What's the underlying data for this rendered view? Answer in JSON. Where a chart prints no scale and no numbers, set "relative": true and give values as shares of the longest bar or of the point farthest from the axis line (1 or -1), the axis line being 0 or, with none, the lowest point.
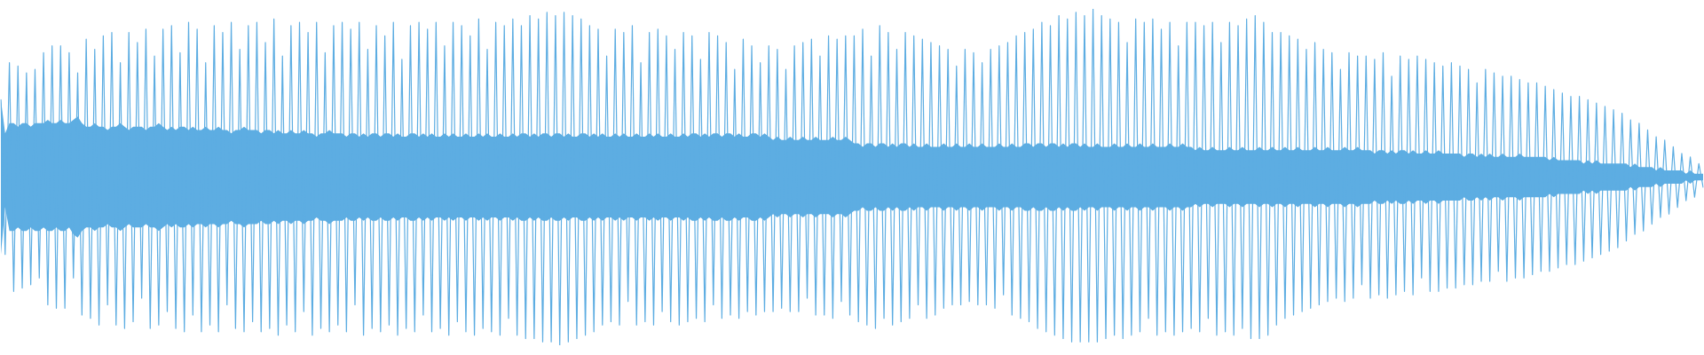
{
  "chart_data": {
    "type": "line",
    "relative": true,
    "categories": [
      null,
      null,
      null,
      null,
      null,
      null,
      null,
      null,
      null,
      null,
      null,
      null,
      null,
      null,
      null,
      null,
      null,
      null,
      null,
      null,
      null,
      null,
      null,
      null,
      null,
      null,
      null,
      null,
      null,
      null,
      null,
      null,
      null,
      null,
      null,
      null,
      null,
      null,
      null,
      null,
      null,
      null,
      null,
      null,
      null,
      null,
      null,
      null,
      null,
      null,
      null,
      null,
      null,
      null,
      null,
      null,
      null,
      null,
      null,
      null,
      null,
      null,
      null,
      null,
      null,
      null,
      null,
      null,
      null,
      null,
      null,
      null,
      null,
      null,
      null,
      null,
      null,
      null,
      null,
      null,
      null,
      null,
      null,
      null,
      null,
      null,
      null,
      null,
      null,
      null,
      null,
      null,
      null,
      null,
      null,
      null,
      null,
      null,
      null,
      null,
      null,
      null,
      null,
      null,
      null,
      null,
      null,
      null,
      null,
      null,
      null,
      null,
      null,
      null,
      null,
      null,
      null,
      null,
      null,
      null,
      null,
      null,
      null,
      null,
      null,
      null,
      null,
      null,
      null,
      null,
      null,
      null,
      null,
      null,
      null,
      null,
      null,
      null,
      null,
      null,
      null,
      null,
      null,
      null,
      null,
      null,
      null,
      null,
      null,
      null,
      null,
      null,
      null,
      null,
      null,
      null,
      null,
      null,
      null,
      null,
      null,
      null,
      null,
      null,
      null,
      null,
      null,
      null,
      null,
      null,
      null,
      null,
      null,
      null,
      null,
      null,
      null,
      null,
      null,
      null,
      null,
      null,
      null,
      null,
      null,
      null,
      null,
      null,
      null,
      null,
      null,
      null,
      null,
      null,
      null,
      null,
      null,
      null,
      null,
      null,
      null,
      null,
      null,
      null,
      null,
      null,
      null,
      null,
      null,
      null,
      null,
      null,
      null,
      null,
      null,
      null,
      null,
      null,
      null,
      null,
      null,
      null,
      null,
      null,
      null,
      null,
      null,
      null,
      null,
      null,
      null,
      null,
      null,
      null,
      null,
      null,
      null,
      null,
      null,
      null,
      null,
      null,
      null,
      null,
      null,
      null,
      null,
      null,
      null,
      null,
      null,
      null,
      null,
      null,
      null,
      null,
      null,
      null,
      null,
      null,
      null,
      null,
      null,
      null,
      null,
      null,
      null,
      null,
      null,
      null,
      null,
      null,
      null,
      null,
      null,
      null,
      null,
      null,
      null,
      null,
      null,
      null,
      null,
      null,
      null,
      null,
      null,
      null,
      null,
      null,
      null,
      null,
      null,
      null,
      null,
      null,
      null,
      null,
      null,
      null,
      null,
      null,
      null,
      null,
      null,
      null,
      null,
      null,
      null,
      null,
      null,
      null,
      null,
      null,
      null,
      null,
      null,
      null,
      null,
      null,
      null,
      null,
      null,
      null,
      null,
      null,
      null,
      null,
      null,
      null,
      null,
      null,
      null,
      null,
      null,
      null,
      null,
      null,
      null,
      null,
      null,
      null,
      null,
      null,
      null,
      null,
      null,
      null,
      null,
      null,
      null,
      null,
      null,
      null,
      null,
      null,
      null,
      null,
      null,
      null,
      null,
      null,
      null,
      null,
      null,
      null,
      null,
      null,
      null,
      null,
      null,
      null,
      null,
      null,
      null,
      null,
      null,
      null,
      null,
      null,
      null,
      null,
      null,
      null,
      null,
      null,
      null,
      null,
      null,
      null,
      null,
      null,
      null,
      null,
      null,
      null,
      null,
      null,
      null,
      null
    ],
    "series": [
      {
        "color": "#5dade2",
        "values": [
          0.73,
          0.27,
          0.84,
          0.16,
          0.83,
          0.17,
          0.81,
          0.18,
          0.82,
          0.2,
          0.87,
          0.12,
          0.89,
          0.11,
          0.89,
          0.11,
          0.87,
          0.2,
          0.81,
          0.09,
          0.91,
          0.08,
          0.88,
          0.06,
          0.92,
          0.12,
          0.93,
          0.06,
          0.84,
          0.05,
          0.93,
          0.07,
          0.9,
          0.14,
          0.94,
          0.05,
          0.86,
          0.06,
          0.94,
          0.1,
          0.95,
          0.05,
          0.87,
          0.04,
          0.96,
          0.09,
          0.94,
          0.04,
          0.84,
          0.06,
          0.95,
          0.04,
          0.93,
          0.12,
          0.96,
          0.05,
          0.88,
          0.04,
          0.95,
          0.07,
          0.96,
          0.04,
          0.9,
          0.05,
          0.97,
          0.03,
          0.86,
          0.06,
          0.95,
          0.04,
          0.96,
          0.1,
          0.93,
          0.03,
          0.96,
          0.05,
          0.87,
          0.04,
          0.95,
          0.06,
          0.96,
          0.04,
          0.94,
          0.12,
          0.96,
          0.03,
          0.88,
          0.05,
          0.95,
          0.04,
          0.92,
          0.06,
          0.96,
          0.03,
          0.85,
          0.05,
          0.95,
          0.04,
          0.96,
          0.09,
          0.94,
          0.04,
          0.96,
          0.05,
          0.89,
          0.03,
          0.96,
          0.07,
          0.95,
          0.04,
          0.92,
          0.03,
          0.97,
          0.05,
          0.88,
          0.04,
          0.96,
          0.03,
          0.95,
          0.08,
          0.97,
          0.03,
          0.95,
          0.02,
          0.98,
          0.02,
          0.97,
          0.01,
          0.99,
          0.01,
          0.98,
          0,
          0.99,
          0.01,
          0.98,
          0.02,
          0.97,
          0.03,
          0.95,
          0.04,
          0.94,
          0.06,
          0.86,
          0.07,
          0.94,
          0.06,
          0.93,
          0.13,
          0.95,
          0.06,
          0.84,
          0.07,
          0.93,
          0.06,
          0.94,
          0.1,
          0.92,
          0.07,
          0.88,
          0.06,
          0.93,
          0.07,
          0.92,
          0.08,
          0.85,
          0.07,
          0.93,
          0.12,
          0.92,
          0.08,
          0.9,
          0.09,
          0.82,
          0.08,
          0.91,
          0.1,
          0.89,
          0.09,
          0.84,
          0.1,
          0.89,
          0.1,
          0.88,
          0.11,
          0.82,
          0.1,
          0.89,
          0.1,
          0.9,
          0.14,
          0.91,
          0.09,
          0.86,
          0.09,
          0.92,
          0.08,
          0.91,
          0.13,
          0.92,
          0.09,
          0.92,
          0.07,
          0.94,
          0.06,
          0.86,
          0.05,
          0.95,
          0.08,
          0.93,
          0.06,
          0.88,
          0.07,
          0.93,
          0.08,
          0.92,
          0.12,
          0.91,
          0.08,
          0.9,
          0.09,
          0.89,
          0.11,
          0.88,
          0.12,
          0.83,
          0.12,
          0.88,
          0.13,
          0.87,
          0.12,
          0.84,
          0.12,
          0.88,
          0.11,
          0.89,
          0.15,
          0.9,
          0.09,
          0.92,
          0.08,
          0.93,
          0.07,
          0.94,
          0.05,
          0.96,
          0.04,
          0.95,
          0.03,
          0.98,
          0.02,
          0.97,
          0.01,
          0.99,
          0.01,
          0.98,
          0.01,
          1,
          0.01,
          0.98,
          0.02,
          0.97,
          0.03,
          0.96,
          0.02,
          0.9,
          0.03,
          0.97,
          0.04,
          0.96,
          0.08,
          0.97,
          0.03,
          0.94,
          0.04,
          0.96,
          0.03,
          0.89,
          0.04,
          0.96,
          0.05,
          0.96,
          0.04,
          0.95,
          0.08,
          0.96,
          0.03,
          0.9,
          0.04,
          0.96,
          0.03,
          0.95,
          0.05,
          0.97,
          0.02,
          0.98,
          0.02,
          0.96,
          0.03,
          0.93,
          0.06,
          0.93,
          0.08,
          0.92,
          0.09,
          0.91,
          0.1,
          0.88,
          0.11,
          0.9,
          0.12,
          0.88,
          0.13,
          0.87,
          0.14,
          0.82,
          0.13,
          0.87,
          0.14,
          0.86,
          0.18,
          0.86,
          0.14,
          0.85,
          0.15,
          0.87,
          0.14,
          0.8,
          0.15,
          0.86,
          0.16,
          0.85,
          0.15,
          0.86,
          0.2,
          0.85,
          0.16,
          0.84,
          0.16,
          0.83,
          0.17,
          0.84,
          0.17,
          0.83,
          0.18,
          0.82,
          0.18,
          0.78,
          0.19,
          0.82,
          0.19,
          0.81,
          0.22,
          0.8,
          0.19,
          0.8,
          0.2,
          0.79,
          0.2,
          0.78,
          0.21,
          0.78,
          0.22,
          0.77,
          0.22,
          0.76,
          0.23,
          0.75,
          0.24,
          0.74,
          0.24,
          0.74,
          0.25,
          0.73,
          0.26,
          0.72,
          0.27,
          0.71,
          0.28,
          0.7,
          0.29,
          0.69,
          0.31,
          0.67,
          0.33,
          0.66,
          0.34,
          0.64,
          0.36,
          0.62,
          0.38,
          0.61,
          0.39,
          0.59,
          0.41,
          0.57,
          0.43,
          0.56,
          0.44,
          0.54,
          0.47
        ],
        "upper": [
          0.73,
          0.63,
          0.66,
          0.66,
          0.65,
          0.66,
          0.66,
          0.65,
          0.66,
          0.66,
          0.66,
          0.67,
          0.66,
          0.66,
          0.67,
          0.66,
          0.66,
          0.67,
          0.68,
          0.66,
          0.65,
          0.65,
          0.66,
          0.65,
          0.65,
          0.64,
          0.65,
          0.65,
          0.66,
          0.65,
          0.64,
          0.65,
          0.65,
          0.65,
          0.64,
          0.65,
          0.65,
          0.66,
          0.65,
          0.64,
          0.65,
          0.64,
          0.65,
          0.65,
          0.64,
          0.65,
          0.64,
          0.64,
          0.65,
          0.64,
          0.64,
          0.65,
          0.64,
          0.64,
          0.63,
          0.64,
          0.64,
          0.65,
          0.64,
          0.64,
          0.64,
          0.63,
          0.64,
          0.64,
          0.63,
          0.64,
          0.63,
          0.63,
          0.64,
          0.63,
          0.63,
          0.64,
          0.63,
          0.63,
          0.62,
          0.63,
          0.63,
          0.64,
          0.63,
          0.63,
          0.63,
          0.62,
          0.63,
          0.63,
          0.62,
          0.63,
          0.62,
          0.63,
          0.63,
          0.62,
          0.63,
          0.63,
          0.62,
          0.63,
          0.62,
          0.62,
          0.63,
          0.63,
          0.62,
          0.63,
          0.62,
          0.63,
          0.62,
          0.62,
          0.63,
          0.62,
          0.63,
          0.62,
          0.62,
          0.63,
          0.62,
          0.62,
          0.63,
          0.62,
          0.63,
          0.62,
          0.62,
          0.63,
          0.62,
          0.62,
          0.63,
          0.62,
          0.63,
          0.63,
          0.62,
          0.63,
          0.62,
          0.63,
          0.63,
          0.62,
          0.63,
          0.63,
          0.62,
          0.63,
          0.62,
          0.62,
          0.63,
          0.63,
          0.62,
          0.63,
          0.62,
          0.63,
          0.62,
          0.62,
          0.63,
          0.62,
          0.63,
          0.62,
          0.62,
          0.63,
          0.62,
          0.62,
          0.63,
          0.62,
          0.63,
          0.62,
          0.62,
          0.63,
          0.62,
          0.62,
          0.63,
          0.62,
          0.63,
          0.63,
          0.62,
          0.63,
          0.62,
          0.63,
          0.63,
          0.62,
          0.63,
          0.63,
          0.62,
          0.63,
          0.62,
          0.62,
          0.63,
          0.63,
          0.62,
          0.63,
          0.62,
          0.61,
          0.62,
          0.61,
          0.61,
          0.62,
          0.61,
          0.61,
          0.62,
          0.61,
          0.61,
          0.62,
          0.61,
          0.61,
          0.61,
          0.62,
          0.61,
          0.61,
          0.62,
          0.61,
          0.6,
          0.6,
          0.59,
          0.6,
          0.6,
          0.59,
          0.6,
          0.6,
          0.59,
          0.6,
          0.59,
          0.6,
          0.6,
          0.59,
          0.6,
          0.59,
          0.59,
          0.6,
          0.59,
          0.59,
          0.59,
          0.6,
          0.59,
          0.59,
          0.6,
          0.59,
          0.59,
          0.6,
          0.59,
          0.59,
          0.6,
          0.59,
          0.59,
          0.59,
          0.6,
          0.59,
          0.59,
          0.6,
          0.59,
          0.59,
          0.6,
          0.6,
          0.59,
          0.6,
          0.6,
          0.59,
          0.6,
          0.6,
          0.59,
          0.6,
          0.59,
          0.6,
          0.6,
          0.59,
          0.6,
          0.59,
          0.59,
          0.6,
          0.59,
          0.59,
          0.59,
          0.6,
          0.59,
          0.59,
          0.6,
          0.59,
          0.59,
          0.6,
          0.59,
          0.59,
          0.6,
          0.59,
          0.59,
          0.59,
          0.6,
          0.59,
          0.59,
          0.6,
          0.59,
          0.59,
          0.58,
          0.59,
          0.58,
          0.58,
          0.59,
          0.58,
          0.58,
          0.58,
          0.59,
          0.58,
          0.58,
          0.59,
          0.58,
          0.58,
          0.58,
          0.59,
          0.58,
          0.58,
          0.59,
          0.58,
          0.58,
          0.59,
          0.58,
          0.58,
          0.59,
          0.58,
          0.58,
          0.58,
          0.59,
          0.58,
          0.58,
          0.59,
          0.58,
          0.58,
          0.58,
          0.59,
          0.58,
          0.58,
          0.59,
          0.58,
          0.58,
          0.58,
          0.57,
          0.58,
          0.58,
          0.57,
          0.58,
          0.57,
          0.58,
          0.58,
          0.57,
          0.58,
          0.57,
          0.57,
          0.58,
          0.57,
          0.57,
          0.58,
          0.57,
          0.57,
          0.57,
          0.57,
          0.57,
          0.56,
          0.57,
          0.57,
          0.56,
          0.57,
          0.56,
          0.57,
          0.56,
          0.56,
          0.57,
          0.56,
          0.56,
          0.56,
          0.57,
          0.56,
          0.56,
          0.56,
          0.56,
          0.56,
          0.56,
          0.55,
          0.56,
          0.55,
          0.55,
          0.55,
          0.55,
          0.55,
          0.55,
          0.54,
          0.55,
          0.54,
          0.55,
          0.54,
          0.54,
          0.54,
          0.54,
          0.54,
          0.54,
          0.54,
          0.53,
          0.54,
          0.53,
          0.53,
          0.53,
          0.53,
          0.52,
          0.53,
          0.52,
          0.52,
          0.52,
          0.52,
          0.52,
          0.51,
          0.52,
          0.51,
          0.51,
          0.51
        ],
        "lower": [
          0.27,
          0.41,
          0.34,
          0.34,
          0.35,
          0.34,
          0.34,
          0.35,
          0.34,
          0.34,
          0.35,
          0.34,
          0.34,
          0.35,
          0.34,
          0.34,
          0.35,
          0.33,
          0.32,
          0.34,
          0.35,
          0.35,
          0.34,
          0.35,
          0.35,
          0.36,
          0.35,
          0.35,
          0.34,
          0.35,
          0.36,
          0.35,
          0.35,
          0.35,
          0.36,
          0.35,
          0.35,
          0.34,
          0.35,
          0.36,
          0.35,
          0.36,
          0.35,
          0.35,
          0.36,
          0.35,
          0.36,
          0.36,
          0.35,
          0.36,
          0.36,
          0.35,
          0.36,
          0.36,
          0.37,
          0.36,
          0.36,
          0.35,
          0.36,
          0.36,
          0.36,
          0.37,
          0.36,
          0.36,
          0.37,
          0.36,
          0.37,
          0.37,
          0.36,
          0.37,
          0.37,
          0.36,
          0.37,
          0.37,
          0.38,
          0.37,
          0.37,
          0.36,
          0.37,
          0.37,
          0.37,
          0.38,
          0.37,
          0.37,
          0.38,
          0.37,
          0.38,
          0.37,
          0.37,
          0.38,
          0.37,
          0.37,
          0.38,
          0.37,
          0.38,
          0.38,
          0.37,
          0.37,
          0.38,
          0.37,
          0.38,
          0.37,
          0.38,
          0.38,
          0.37,
          0.38,
          0.37,
          0.38,
          0.38,
          0.37,
          0.38,
          0.38,
          0.37,
          0.38,
          0.37,
          0.38,
          0.38,
          0.37,
          0.38,
          0.38,
          0.37,
          0.38,
          0.37,
          0.37,
          0.38,
          0.37,
          0.38,
          0.37,
          0.37,
          0.38,
          0.37,
          0.37,
          0.38,
          0.37,
          0.38,
          0.38,
          0.37,
          0.37,
          0.38,
          0.37,
          0.38,
          0.37,
          0.38,
          0.38,
          0.37,
          0.38,
          0.37,
          0.38,
          0.38,
          0.37,
          0.38,
          0.38,
          0.37,
          0.38,
          0.37,
          0.38,
          0.38,
          0.37,
          0.38,
          0.38,
          0.37,
          0.38,
          0.37,
          0.37,
          0.38,
          0.37,
          0.38,
          0.37,
          0.37,
          0.38,
          0.37,
          0.37,
          0.38,
          0.37,
          0.38,
          0.38,
          0.37,
          0.37,
          0.38,
          0.37,
          0.38,
          0.39,
          0.38,
          0.39,
          0.39,
          0.38,
          0.39,
          0.39,
          0.38,
          0.39,
          0.39,
          0.38,
          0.39,
          0.39,
          0.39,
          0.38,
          0.39,
          0.39,
          0.38,
          0.39,
          0.4,
          0.4,
          0.41,
          0.4,
          0.4,
          0.41,
          0.4,
          0.4,
          0.41,
          0.4,
          0.41,
          0.4,
          0.4,
          0.41,
          0.4,
          0.41,
          0.41,
          0.4,
          0.41,
          0.41,
          0.41,
          0.4,
          0.41,
          0.41,
          0.4,
          0.41,
          0.41,
          0.4,
          0.41,
          0.41,
          0.4,
          0.41,
          0.41,
          0.41,
          0.4,
          0.41,
          0.41,
          0.4,
          0.41,
          0.41,
          0.4,
          0.4,
          0.41,
          0.4,
          0.4,
          0.41,
          0.4,
          0.4,
          0.41,
          0.4,
          0.41,
          0.4,
          0.4,
          0.41,
          0.4,
          0.41,
          0.41,
          0.4,
          0.41,
          0.41,
          0.41,
          0.4,
          0.41,
          0.41,
          0.4,
          0.41,
          0.41,
          0.4,
          0.41,
          0.41,
          0.4,
          0.41,
          0.41,
          0.41,
          0.4,
          0.41,
          0.41,
          0.4,
          0.41,
          0.41,
          0.42,
          0.41,
          0.42,
          0.42,
          0.41,
          0.42,
          0.42,
          0.42,
          0.41,
          0.42,
          0.42,
          0.41,
          0.42,
          0.42,
          0.42,
          0.41,
          0.42,
          0.42,
          0.41,
          0.42,
          0.42,
          0.41,
          0.42,
          0.42,
          0.41,
          0.42,
          0.42,
          0.42,
          0.41,
          0.42,
          0.42,
          0.41,
          0.42,
          0.42,
          0.42,
          0.41,
          0.42,
          0.42,
          0.41,
          0.42,
          0.42,
          0.42,
          0.43,
          0.42,
          0.42,
          0.43,
          0.42,
          0.43,
          0.42,
          0.42,
          0.43,
          0.42,
          0.43,
          0.43,
          0.42,
          0.43,
          0.43,
          0.42,
          0.43,
          0.43,
          0.43,
          0.43,
          0.43,
          0.44,
          0.43,
          0.43,
          0.44,
          0.43,
          0.44,
          0.43,
          0.44,
          0.44,
          0.43,
          0.44,
          0.44,
          0.44,
          0.43,
          0.44,
          0.44,
          0.44,
          0.44,
          0.44,
          0.44,
          0.45,
          0.44,
          0.45,
          0.45,
          0.45,
          0.45,
          0.45,
          0.45,
          0.46,
          0.45,
          0.46,
          0.45,
          0.46,
          0.46,
          0.46,
          0.46,
          0.46,
          0.46,
          0.46,
          0.47,
          0.46,
          0.47,
          0.47,
          0.47,
          0.47,
          0.48,
          0.47,
          0.48,
          0.48,
          0.48,
          0.48,
          0.48,
          0.49,
          0.48,
          0.49,
          0.49,
          0.49
        ]
      }
    ]
  }
}
